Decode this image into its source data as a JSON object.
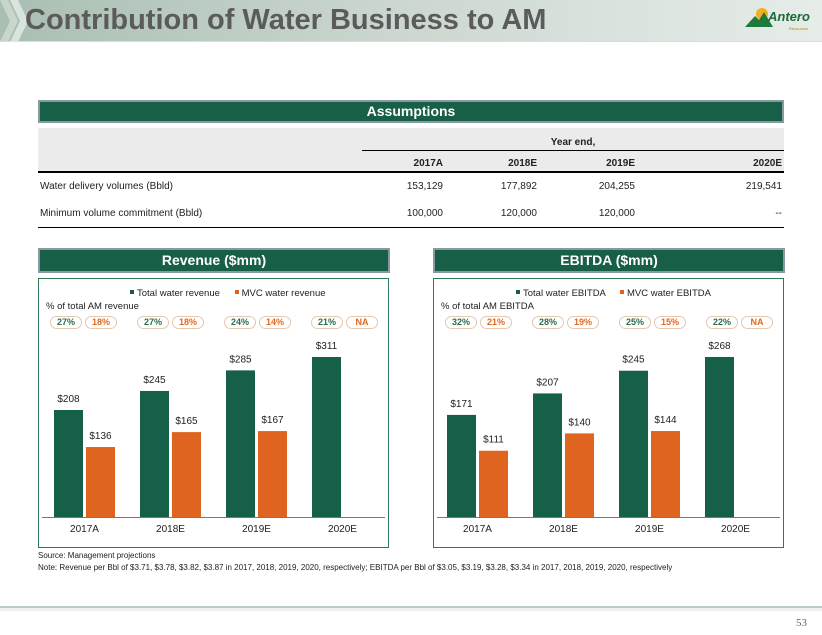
{
  "header": {
    "title": "Contribution of Water Business to AM",
    "logo_text": "Antero",
    "logo_subtext": "Resources"
  },
  "assumptions": {
    "title": "Assumptions",
    "group_header": "Year end,",
    "columns": [
      "2017A",
      "2018E",
      "2019E",
      "2020E"
    ],
    "rows": [
      {
        "label": "Water delivery volumes (Bbld)",
        "values": [
          "153,129",
          "177,892",
          "204,255",
          "219,541"
        ]
      },
      {
        "label": "Minimum volume commitment (Bbld)",
        "values": [
          "100,000",
          "120,000",
          "120,000",
          "--"
        ]
      }
    ]
  },
  "colors": {
    "green": "#165f48",
    "orange": "#de6420",
    "panel_border": "#2f7a5a"
  },
  "revenue": {
    "panel_title": "Revenue ($mm)",
    "pct_label": "% of total AM revenue",
    "pct_total": [
      "27%",
      "27%",
      "24%",
      "21%"
    ],
    "pct_mvc": [
      "18%",
      "18%",
      "14%",
      "NA"
    ]
  },
  "ebitda": {
    "panel_title": "EBITDA ($mm)",
    "pct_label": "% of total AM EBITDA",
    "pct_total": [
      "32%",
      "28%",
      "25%",
      "22%"
    ],
    "pct_mvc": [
      "21%",
      "19%",
      "15%",
      "NA"
    ]
  },
  "chart_data": [
    {
      "type": "bar",
      "title": "Revenue ($mm)",
      "categories": [
        "2017A",
        "2018E",
        "2019E",
        "2020E"
      ],
      "series": [
        {
          "name": "Total water revenue",
          "values": [
            208,
            245,
            285,
            311
          ],
          "labels": [
            "$208",
            "$245",
            "$285",
            "$311"
          ],
          "color": "#165f48"
        },
        {
          "name": "MVC water revenue",
          "values": [
            136,
            165,
            167,
            null
          ],
          "labels": [
            "$136",
            "$165",
            "$167",
            ""
          ],
          "color": "#de6420"
        }
      ],
      "xlabel": "",
      "ylabel": "",
      "ylim": [
        0,
        330
      ],
      "grid": false,
      "legend": "top-center"
    },
    {
      "type": "bar",
      "title": "EBITDA ($mm)",
      "categories": [
        "2017A",
        "2018E",
        "2019E",
        "2020E"
      ],
      "series": [
        {
          "name": "Total water EBITDA",
          "values": [
            171,
            207,
            245,
            268
          ],
          "labels": [
            "$171",
            "$207",
            "$245",
            "$268"
          ],
          "color": "#165f48"
        },
        {
          "name": "MVC water EBITDA",
          "values": [
            111,
            140,
            144,
            null
          ],
          "labels": [
            "$111",
            "$140",
            "$144",
            ""
          ],
          "color": "#de6420"
        }
      ],
      "xlabel": "",
      "ylabel": "",
      "ylim": [
        0,
        285
      ],
      "grid": false,
      "legend": "top-center"
    }
  ],
  "footnotes": {
    "source": "Source: Management projections",
    "note": "Note: Revenue per Bbl of $3.71, $3.78, $3.82, $3.87 in 2017, 2018, 2019, 2020, respectively; EBITDA per Bbl of $3.05, $3.19, $3.28, $3.34 in 2017, 2018, 2019, 2020, respectively"
  },
  "page_number": "53"
}
